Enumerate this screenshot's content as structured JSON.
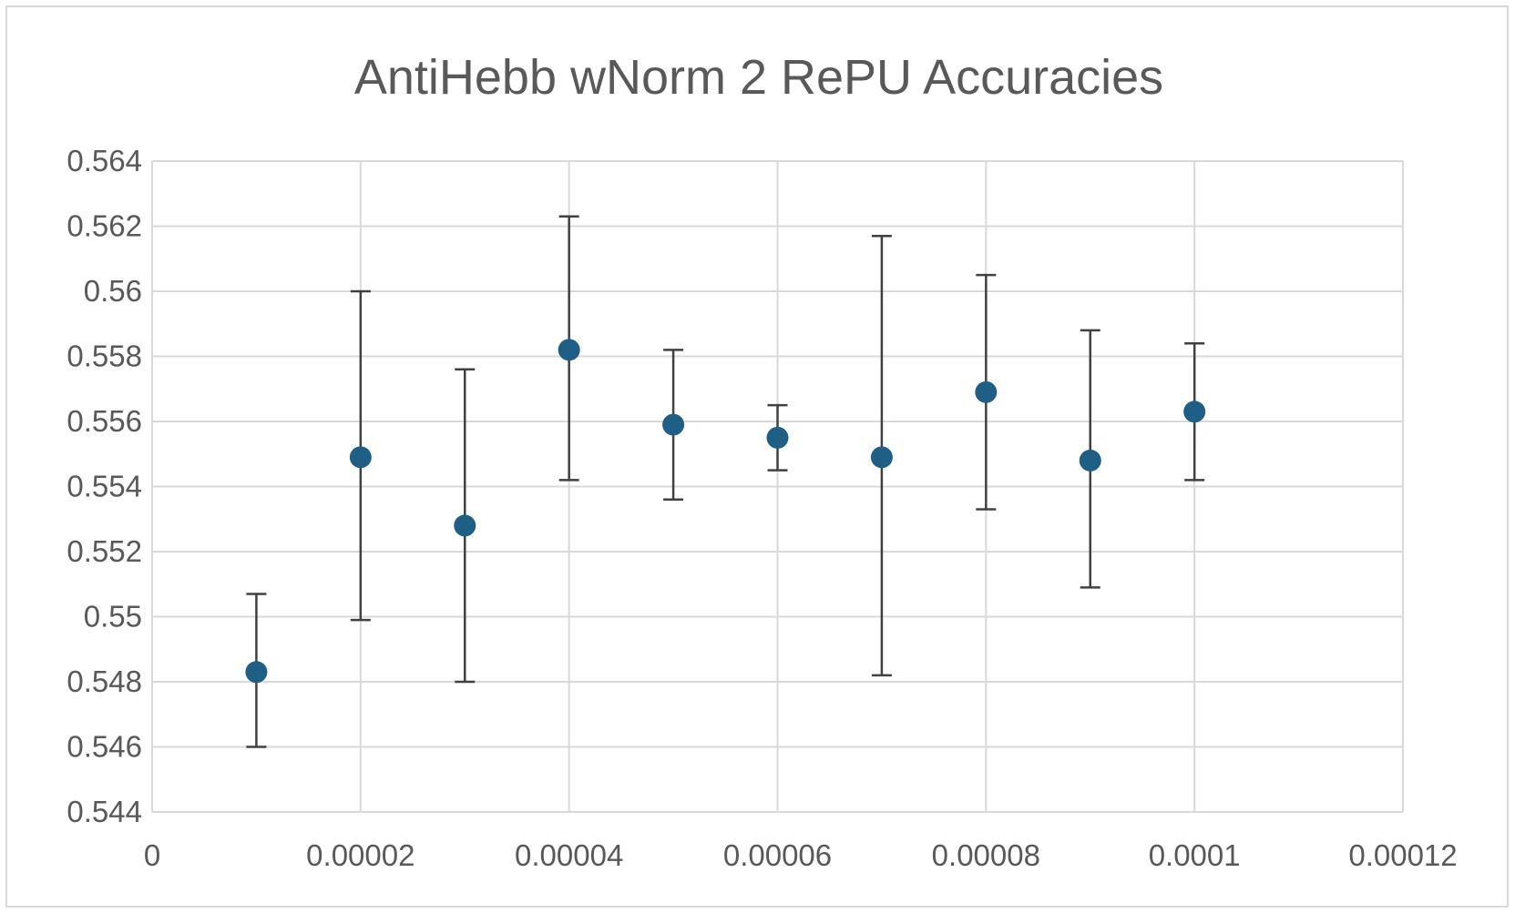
{
  "chart_data": {
    "type": "scatter",
    "title": "AntiHebb wNorm 2 RePU Accuracies",
    "xlabel": "",
    "ylabel": "",
    "xlim": [
      0,
      0.00012
    ],
    "ylim": [
      0.544,
      0.564
    ],
    "x_ticks": [
      "0",
      "0.00002",
      "0.00004",
      "0.00006",
      "0.00008",
      "0.0001",
      "0.00012"
    ],
    "x_tick_values": [
      0,
      2e-05,
      4e-05,
      6e-05,
      8e-05,
      0.0001,
      0.00012
    ],
    "y_ticks": [
      "0.544",
      "0.546",
      "0.548",
      "0.55",
      "0.552",
      "0.554",
      "0.556",
      "0.558",
      "0.56",
      "0.562",
      "0.564"
    ],
    "y_tick_values": [
      0.544,
      0.546,
      0.548,
      0.55,
      0.552,
      0.554,
      0.556,
      0.558,
      0.56,
      0.562,
      0.564
    ],
    "grid": true,
    "legend": "none",
    "marker_color": "#1f5f86",
    "error_bar_color": "#404040",
    "grid_color": "#d9d9d9",
    "series": [
      {
        "x": [
          1e-05,
          2e-05,
          3e-05,
          4e-05,
          5e-05,
          6e-05,
          7e-05,
          8e-05,
          9e-05,
          0.0001
        ],
        "y": [
          0.5483,
          0.5549,
          0.5528,
          0.5582,
          0.5559,
          0.5555,
          0.5549,
          0.5569,
          0.5548,
          0.5563
        ],
        "y_err_low": [
          0.546,
          0.5499,
          0.548,
          0.5542,
          0.5536,
          0.5545,
          0.5482,
          0.5533,
          0.5509,
          0.5542
        ],
        "y_err_high": [
          0.5507,
          0.56,
          0.5576,
          0.5623,
          0.5582,
          0.5565,
          0.5617,
          0.5605,
          0.5588,
          0.5584
        ]
      }
    ]
  }
}
